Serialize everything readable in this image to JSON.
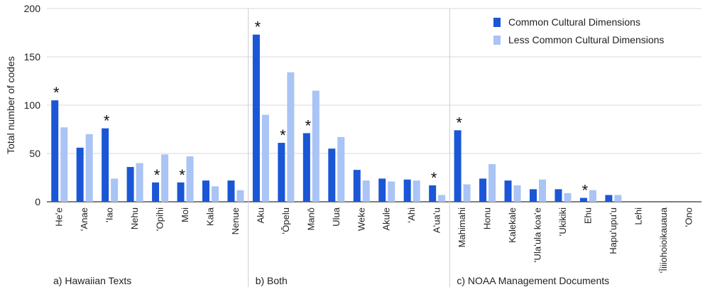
{
  "chart_data": {
    "type": "bar",
    "ylabel": "Total number of codes",
    "ylim": [
      0,
      200
    ],
    "yticks": [
      0,
      50,
      100,
      150,
      200
    ],
    "grid": true,
    "legend_position": "top-right",
    "series": [
      {
        "name": "Common Cultural Dimensions",
        "color": "#1a56d6"
      },
      {
        "name": "Less Common Cultural Dimensions",
        "color": "#a9c4f5"
      }
    ],
    "groups": [
      {
        "label": "a) Hawaiian Texts",
        "categories": [
          {
            "name": "Heʻe",
            "common": 105,
            "less": 77,
            "star": true
          },
          {
            "name": "ʻAnae",
            "common": 56,
            "less": 70,
            "star": false
          },
          {
            "name": "ʻIao",
            "common": 76,
            "less": 24,
            "star": true
          },
          {
            "name": "Nehu",
            "common": 36,
            "less": 40,
            "star": false
          },
          {
            "name": "ʻOpihi",
            "common": 20,
            "less": 49,
            "star": true
          },
          {
            "name": "Moi",
            "common": 20,
            "less": 47,
            "star": true
          },
          {
            "name": "Kala",
            "common": 22,
            "less": 16,
            "star": false
          },
          {
            "name": "Nenue",
            "common": 22,
            "less": 12,
            "star": false
          }
        ]
      },
      {
        "label": "b) Both",
        "categories": [
          {
            "name": "Aku",
            "common": 173,
            "less": 90,
            "star": true
          },
          {
            "name": "ʻŌpelu",
            "common": 61,
            "less": 134,
            "star": true
          },
          {
            "name": "Manō",
            "common": 71,
            "less": 115,
            "star": true
          },
          {
            "name": "Ulua",
            "common": 55,
            "less": 67,
            "star": false
          },
          {
            "name": "Weke",
            "common": 33,
            "less": 22,
            "star": false
          },
          {
            "name": "Akule",
            "common": 24,
            "less": 21,
            "star": false
          },
          {
            "name": "ʻAhi",
            "common": 23,
            "less": 22,
            "star": false
          },
          {
            "name": "Aʻuaʻu",
            "common": 17,
            "less": 7,
            "star": true
          }
        ]
      },
      {
        "label": "c) NOAA Management Documents",
        "categories": [
          {
            "name": "Mahimahi",
            "common": 74,
            "less": 18,
            "star": true
          },
          {
            "name": "Honu",
            "common": 24,
            "less": 39,
            "star": false
          },
          {
            "name": "Kalekale",
            "common": 22,
            "less": 17,
            "star": false
          },
          {
            "name": "ʻUlaʻula koaʻe",
            "common": 13,
            "less": 23,
            "star": false
          },
          {
            "name": "ʻUkikiki",
            "common": 13,
            "less": 9,
            "star": false
          },
          {
            "name": "Ehu",
            "common": 4,
            "less": 12,
            "star": true
          },
          {
            "name": "Hapuʻupuʻu",
            "common": 7,
            "less": 7,
            "star": false
          },
          {
            "name": "Lehi",
            "common": 0,
            "less": 0,
            "star": false
          },
          {
            "name": "ʻĪiiiohoioikauaua",
            "common": 0,
            "less": 0,
            "star": false
          },
          {
            "name": "ʻOno",
            "common": 0,
            "less": 0,
            "star": false
          }
        ]
      }
    ],
    "significance_marker": "*"
  }
}
